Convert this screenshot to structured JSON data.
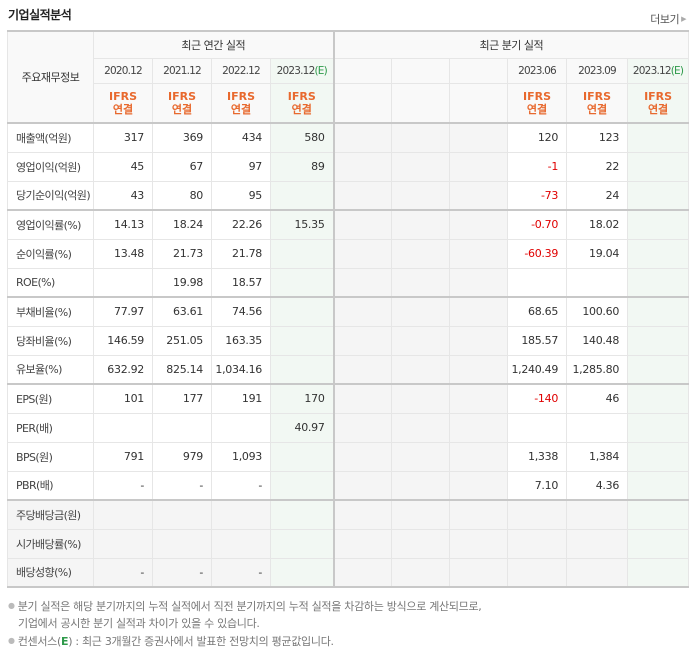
{
  "header": {
    "title": "기업실적분석",
    "more_label": "더보기",
    "more_arrow": "▶"
  },
  "table": {
    "row_header_label": "주요재무정보",
    "group_annual": "최근 연간 실적",
    "group_quarter": "최근 분기 실적",
    "est_suffix": "(E)",
    "annual_periods": [
      "2020.12",
      "2021.12",
      "2022.12",
      "2023.12"
    ],
    "quarter_periods": [
      "",
      "",
      "",
      "2023.06",
      "2023.09",
      "2023.12"
    ],
    "basis_line1": "IFRS",
    "basis_line2": "연결",
    "rows": [
      {
        "label": "매출액(억원)",
        "annual": [
          "317",
          "369",
          "434",
          "580"
        ],
        "quarter": [
          "",
          "",
          "",
          "120",
          "123",
          ""
        ]
      },
      {
        "label": "영업이익(억원)",
        "annual": [
          "45",
          "67",
          "97",
          "89"
        ],
        "quarter": [
          "",
          "",
          "",
          "-1",
          "22",
          ""
        ]
      },
      {
        "label": "당기순이익(억원)",
        "annual": [
          "43",
          "80",
          "95",
          ""
        ],
        "quarter": [
          "",
          "",
          "",
          "-73",
          "24",
          ""
        ]
      },
      {
        "label": "영업이익률(%)",
        "annual": [
          "14.13",
          "18.24",
          "22.26",
          "15.35"
        ],
        "quarter": [
          "",
          "",
          "",
          "-0.70",
          "18.02",
          ""
        ]
      },
      {
        "label": "순이익률(%)",
        "annual": [
          "13.48",
          "21.73",
          "21.78",
          ""
        ],
        "quarter": [
          "",
          "",
          "",
          "-60.39",
          "19.04",
          ""
        ]
      },
      {
        "label": "ROE(%)",
        "annual": [
          "",
          "19.98",
          "18.57",
          ""
        ],
        "quarter": [
          "",
          "",
          "",
          "",
          "",
          ""
        ]
      },
      {
        "label": "부채비율(%)",
        "annual": [
          "77.97",
          "63.61",
          "74.56",
          ""
        ],
        "quarter": [
          "",
          "",
          "",
          "68.65",
          "100.60",
          ""
        ]
      },
      {
        "label": "당좌비율(%)",
        "annual": [
          "146.59",
          "251.05",
          "163.35",
          ""
        ],
        "quarter": [
          "",
          "",
          "",
          "185.57",
          "140.48",
          ""
        ]
      },
      {
        "label": "유보율(%)",
        "annual": [
          "632.92",
          "825.14",
          "1,034.16",
          ""
        ],
        "quarter": [
          "",
          "",
          "",
          "1,240.49",
          "1,285.80",
          ""
        ]
      },
      {
        "label": "EPS(원)",
        "annual": [
          "101",
          "177",
          "191",
          "170"
        ],
        "quarter": [
          "",
          "",
          "",
          "-140",
          "46",
          ""
        ]
      },
      {
        "label": "PER(배)",
        "annual": [
          "",
          "",
          "",
          "40.97"
        ],
        "quarter": [
          "",
          "",
          "",
          "",
          "",
          ""
        ]
      },
      {
        "label": "BPS(원)",
        "annual": [
          "791",
          "979",
          "1,093",
          ""
        ],
        "quarter": [
          "",
          "",
          "",
          "1,338",
          "1,384",
          ""
        ]
      },
      {
        "label": "PBR(배)",
        "annual": [
          "-",
          "-",
          "-",
          ""
        ],
        "quarter": [
          "",
          "",
          "",
          "7.10",
          "4.36",
          ""
        ]
      },
      {
        "label": "주당배당금(원)",
        "annual": [
          "",
          "",
          "",
          ""
        ],
        "quarter": [
          "",
          "",
          "",
          "",
          "",
          ""
        ]
      },
      {
        "label": "시가배당률(%)",
        "annual": [
          "",
          "",
          "",
          ""
        ],
        "quarter": [
          "",
          "",
          "",
          "",
          "",
          ""
        ]
      },
      {
        "label": "배당성향(%)",
        "annual": [
          "-",
          "-",
          "-",
          ""
        ],
        "quarter": [
          "",
          "",
          "",
          "",
          "",
          ""
        ]
      }
    ]
  },
  "notes": {
    "line1": "분기 실적은 해당 분기까지의 누적 실적에서 직전 분기까지의 누적 실적을 차감하는 방식으로 계산되므로,",
    "line2": "기업에서 공시한 분기 실적과 차이가 있을 수 있습니다.",
    "line3_prefix": "컨센서스(",
    "line3_e": "E",
    "line3_suffix": ") : 최근 3개월간 증권사에서 발표한 전망치의 평균값입니다."
  },
  "colors": {
    "ifrs_orange": "#e8692e",
    "estimate_green": "#2e9a4a",
    "negative_red": "#e00000",
    "estimate_bg": "#f2f8f3"
  }
}
